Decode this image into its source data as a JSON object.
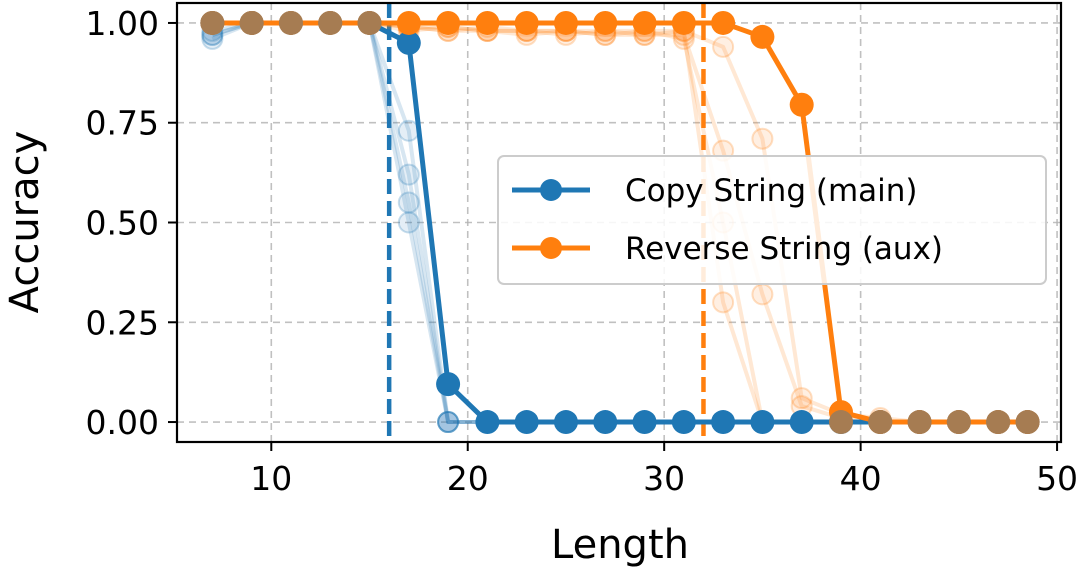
{
  "chart_data": {
    "type": "line",
    "xlabel": "Length",
    "ylabel": "Accuracy",
    "xlim": [
      5.2,
      50.2
    ],
    "ylim": [
      -0.05,
      1.05
    ],
    "xticks": [
      10,
      20,
      30,
      40,
      50
    ],
    "yticks": [
      0.0,
      0.25,
      0.5,
      0.75,
      1.0
    ],
    "xtick_labels": [
      "10",
      "20",
      "30",
      "40",
      "50"
    ],
    "ytick_labels": [
      "0.00",
      "0.25",
      "0.50",
      "0.75",
      "1.00"
    ],
    "grid": true,
    "legend_position": "center-right",
    "series": [
      {
        "name": "Copy String (main)",
        "color": "#1f77b4",
        "x": [
          7,
          9,
          11,
          13,
          15,
          17,
          19,
          21,
          23,
          25,
          27,
          29,
          31,
          33,
          35,
          37,
          39,
          41,
          43,
          45,
          47,
          48.5
        ],
        "y": [
          1.0,
          1.0,
          1.0,
          1.0,
          1.0,
          0.95,
          0.095,
          0.0,
          0.0,
          0.0,
          0.0,
          0.0,
          0.0,
          0.0,
          0.0,
          0.0,
          0.0,
          0.0,
          0.0,
          0.0,
          0.0,
          0.0
        ]
      },
      {
        "name": "Reverse String (aux)",
        "color": "#ff7f0e",
        "x": [
          7,
          9,
          11,
          13,
          15,
          17,
          19,
          21,
          23,
          25,
          27,
          29,
          31,
          33,
          35,
          37,
          39,
          41,
          43,
          45,
          47,
          48.5
        ],
        "y": [
          1.0,
          1.0,
          1.0,
          1.0,
          1.0,
          1.0,
          1.0,
          1.0,
          1.0,
          1.0,
          1.0,
          1.0,
          1.0,
          1.0,
          0.965,
          0.795,
          0.025,
          0.0,
          0.0,
          0.0,
          0.0,
          0.0
        ]
      }
    ],
    "faint_runs": [
      {
        "series": "Copy String (main)",
        "x": [
          7,
          9,
          11,
          13,
          15,
          17,
          19,
          21,
          23,
          25,
          27,
          29,
          31,
          33,
          35,
          37,
          39,
          41,
          43,
          45,
          47,
          48.5
        ],
        "y": [
          0.97,
          1.0,
          1.0,
          1.0,
          1.0,
          0.73,
          0.0,
          0.0,
          0.0,
          0.0,
          0.0,
          0.0,
          0.0,
          0.0,
          0.0,
          0.0,
          0.0,
          0.0,
          0.0,
          0.0,
          0.0,
          0.0
        ]
      },
      {
        "series": "Copy String (main)",
        "x": [
          7,
          9,
          11,
          13,
          15,
          17,
          19,
          21,
          23,
          25,
          27,
          29,
          31,
          33,
          35,
          37,
          39,
          41,
          43,
          45,
          47,
          48.5
        ],
        "y": [
          0.98,
          1.0,
          1.0,
          1.0,
          1.0,
          0.62,
          0.0,
          0.0,
          0.0,
          0.0,
          0.0,
          0.0,
          0.0,
          0.0,
          0.0,
          0.0,
          0.0,
          0.0,
          0.0,
          0.0,
          0.0,
          0.0
        ]
      },
      {
        "series": "Copy String (main)",
        "x": [
          7,
          9,
          11,
          13,
          15,
          17,
          19,
          21,
          23,
          25,
          27,
          29,
          31,
          33,
          35,
          37,
          39,
          41,
          43,
          45,
          47,
          48.5
        ],
        "y": [
          0.97,
          1.0,
          1.0,
          1.0,
          1.0,
          0.55,
          0.0,
          0.0,
          0.0,
          0.0,
          0.0,
          0.0,
          0.0,
          0.0,
          0.0,
          0.0,
          0.0,
          0.0,
          0.0,
          0.0,
          0.0,
          0.0
        ]
      },
      {
        "series": "Copy String (main)",
        "x": [
          7,
          9,
          11,
          13,
          15,
          17,
          19,
          21,
          23,
          25,
          27,
          29,
          31,
          33,
          35,
          37,
          39,
          41,
          43,
          45,
          47,
          48.5
        ],
        "y": [
          0.96,
          1.0,
          1.0,
          1.0,
          1.0,
          0.5,
          0.0,
          0.0,
          0.0,
          0.0,
          0.0,
          0.0,
          0.0,
          0.0,
          0.0,
          0.0,
          0.0,
          0.0,
          0.0,
          0.0,
          0.0,
          0.0
        ]
      },
      {
        "series": "Reverse String (aux)",
        "x": [
          7,
          9,
          11,
          13,
          15,
          17,
          19,
          21,
          23,
          25,
          27,
          29,
          31,
          33,
          35,
          37,
          39,
          41,
          43,
          45,
          47,
          48.5
        ],
        "y": [
          1.0,
          1.0,
          1.0,
          1.0,
          1.0,
          0.98,
          0.99,
          0.98,
          0.98,
          0.98,
          0.97,
          0.98,
          0.98,
          0.94,
          0.71,
          0.06,
          0.02,
          0.01,
          0.0,
          0.0,
          0.0,
          0.0
        ]
      },
      {
        "series": "Reverse String (aux)",
        "x": [
          7,
          9,
          11,
          13,
          15,
          17,
          19,
          21,
          23,
          25,
          27,
          29,
          31,
          33,
          35,
          37,
          39,
          41,
          43,
          45,
          47,
          48.5
        ],
        "y": [
          1.0,
          1.0,
          1.0,
          1.0,
          1.0,
          0.99,
          0.98,
          0.98,
          0.97,
          0.98,
          0.98,
          0.97,
          0.97,
          0.68,
          0.32,
          0.04,
          0.01,
          0.0,
          0.0,
          0.0,
          0.0,
          0.0
        ]
      },
      {
        "series": "Reverse String (aux)",
        "x": [
          7,
          9,
          11,
          13,
          15,
          17,
          19,
          21,
          23,
          25,
          27,
          29,
          31,
          33,
          35,
          37,
          39,
          41,
          43,
          45,
          47,
          48.5
        ],
        "y": [
          1.0,
          1.0,
          1.0,
          1.0,
          1.0,
          0.99,
          0.99,
          0.98,
          0.98,
          0.97,
          0.98,
          0.98,
          0.96,
          0.5,
          0.0,
          0.0,
          0.0,
          0.0,
          0.0,
          0.0,
          0.0,
          0.0
        ]
      },
      {
        "series": "Reverse String (aux)",
        "x": [
          7,
          9,
          11,
          13,
          15,
          17,
          19,
          21,
          23,
          25,
          27,
          29,
          31,
          33,
          35,
          37,
          39,
          41,
          43,
          45,
          47,
          48.5
        ],
        "y": [
          1.0,
          1.0,
          1.0,
          1.0,
          1.0,
          0.99,
          0.98,
          0.99,
          0.98,
          0.98,
          0.97,
          0.97,
          0.98,
          0.3,
          0.0,
          0.0,
          0.0,
          0.0,
          0.0,
          0.0,
          0.0,
          0.0
        ]
      }
    ],
    "vertical_lines": [
      {
        "x": 16,
        "color": "#1f77b4",
        "style": "dashed"
      },
      {
        "x": 32,
        "color": "#ff7f0e",
        "style": "dashed"
      }
    ],
    "overlap_color": "#a67c52"
  }
}
